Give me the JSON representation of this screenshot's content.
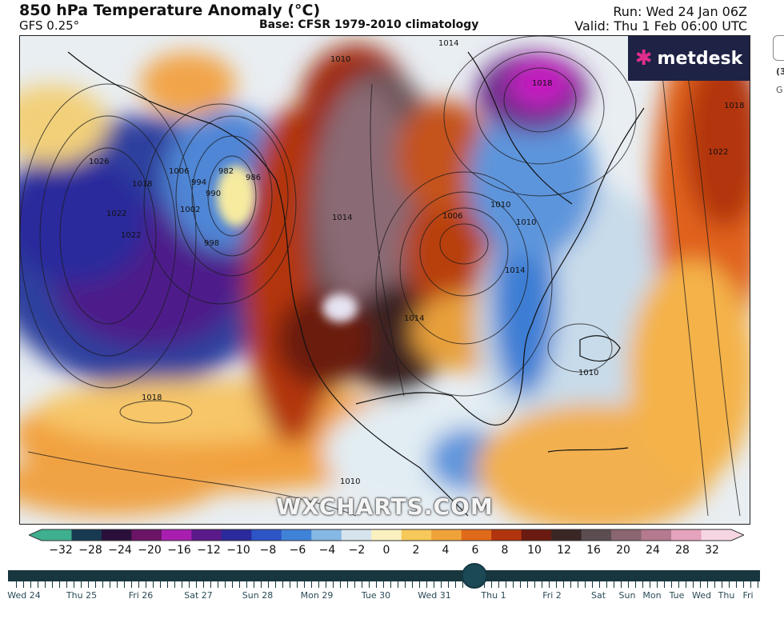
{
  "header": {
    "title": "850 hPa Temperature Anomaly (°C)",
    "model": "GFS 0.25°",
    "base": "Base: CFSR 1979-2010 climatology",
    "run": "Run: Wed 24 Jan 06Z",
    "valid": "Valid: Thu 1 Feb 06:00 UTC"
  },
  "map": {
    "logo_text": "metdesk",
    "logo_icon": "metdesk-star-icon",
    "watermark": "WXCHARTS.COM",
    "isobar_labels": [
      "1014",
      "1010",
      "1006",
      "1018",
      "1022",
      "1026",
      "994",
      "990",
      "986",
      "982",
      "998",
      "1002",
      "1014",
      "1018",
      "1010",
      "1022",
      "1006",
      "1010",
      "1010",
      "1018",
      "1014",
      "1014",
      "1022",
      "1018",
      "1010"
    ]
  },
  "colorbar": {
    "labels": [
      "−32",
      "−28",
      "−24",
      "−20",
      "−16",
      "−12",
      "−10",
      "−8",
      "−6",
      "−4",
      "−2",
      "0",
      "2",
      "4",
      "6",
      "8",
      "10",
      "12",
      "16",
      "20",
      "24",
      "28",
      "32"
    ],
    "colors": [
      "#3fb08f",
      "#173a52",
      "#2a0f3a",
      "#6b1466",
      "#a81fb0",
      "#5a1a8a",
      "#2a2a9c",
      "#2e55c6",
      "#3f83d8",
      "#86b8e4",
      "#d6e4ee",
      "#fbf0c0",
      "#f7c85a",
      "#f0a23a",
      "#e06a1a",
      "#b2340e",
      "#6a1a10",
      "#3b2626",
      "#5b4d50",
      "#8a6670",
      "#b57a90",
      "#e6a3bd",
      "#f7d6e4"
    ]
  },
  "timeline": {
    "days": [
      "Wed 24",
      "Thu 25",
      "Fri 26",
      "Sat 27",
      "Sun 28",
      "Mon 29",
      "Tue 30",
      "Wed 31",
      "Thu 1",
      "Fri 2",
      "Sat",
      "Sun",
      "Mon",
      "Tue",
      "Wed",
      "Thu",
      "Fri"
    ],
    "selected_day": "Thu 1",
    "position_fraction": 0.62
  },
  "side_panel": {
    "text1": "(3",
    "text2": "G"
  }
}
